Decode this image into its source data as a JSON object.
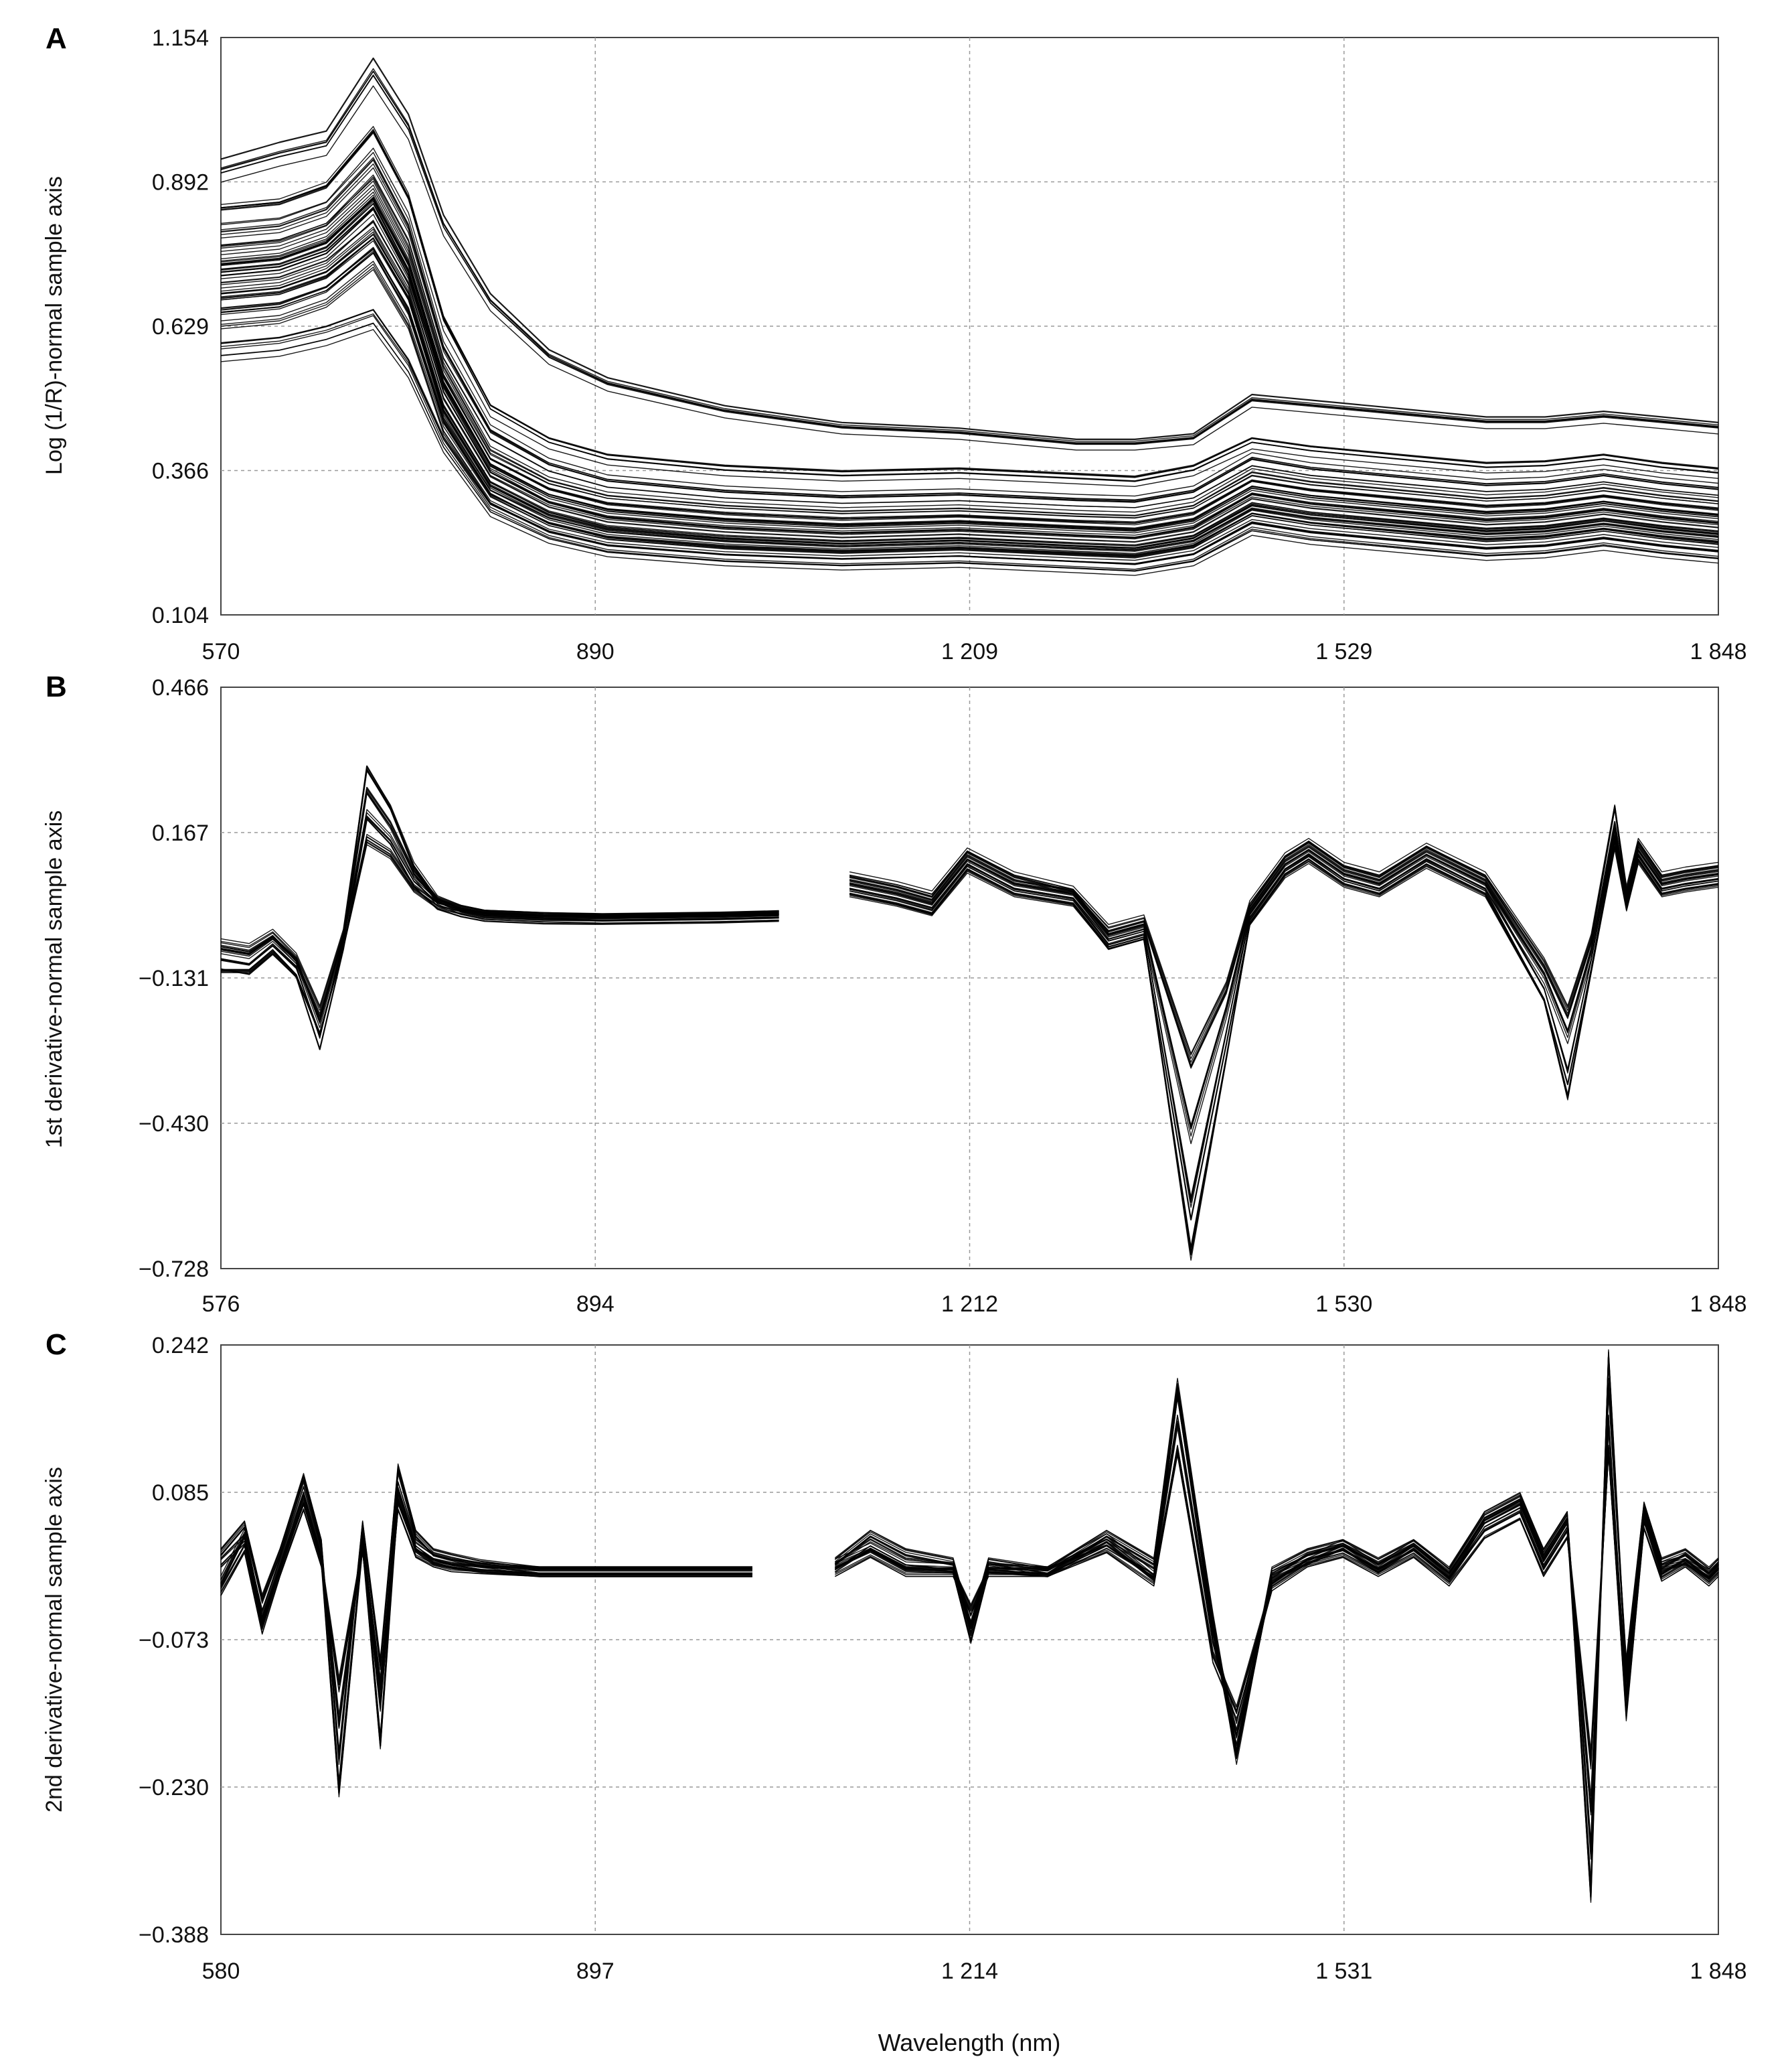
{
  "figure": {
    "xlabel": "Wavelength (nm)"
  },
  "chart_data": [
    {
      "panel": "A",
      "type": "line",
      "title": "",
      "ylabel": "Log (1/R)-normal sample axis",
      "xlabel": "",
      "xlim": [
        570,
        1848
      ],
      "ylim": [
        0.104,
        1.154
      ],
      "xticks": [
        "570",
        "890",
        "1 209",
        "1 529",
        "1 848"
      ],
      "yticks": [
        "1.154",
        "0.892",
        "0.629",
        "0.366",
        "0.104"
      ],
      "grid": true,
      "gap": null,
      "x": [
        570,
        620,
        660,
        700,
        730,
        760,
        800,
        850,
        900,
        1000,
        1100,
        1200,
        1300,
        1350,
        1400,
        1450,
        1500,
        1550,
        1600,
        1650,
        1700,
        1750,
        1800,
        1848
      ],
      "series": [
        {
          "values": [
            0.92,
            0.95,
            0.97,
            1.1,
            1.0,
            0.82,
            0.68,
            0.58,
            0.53,
            0.48,
            0.45,
            0.44,
            0.42,
            0.42,
            0.43,
            0.5,
            0.49,
            0.48,
            0.47,
            0.46,
            0.46,
            0.47,
            0.46,
            0.45
          ]
        },
        {
          "values": [
            0.84,
            0.85,
            0.88,
            0.98,
            0.86,
            0.64,
            0.48,
            0.42,
            0.39,
            0.37,
            0.36,
            0.365,
            0.355,
            0.35,
            0.37,
            0.42,
            0.405,
            0.395,
            0.385,
            0.375,
            0.378,
            0.39,
            0.375,
            0.365
          ]
        },
        {
          "values": [
            0.8,
            0.81,
            0.84,
            0.93,
            0.81,
            0.59,
            0.44,
            0.38,
            0.35,
            0.33,
            0.32,
            0.325,
            0.315,
            0.312,
            0.33,
            0.39,
            0.372,
            0.362,
            0.352,
            0.342,
            0.346,
            0.36,
            0.345,
            0.335
          ]
        },
        {
          "values": [
            0.76,
            0.77,
            0.8,
            0.88,
            0.76,
            0.55,
            0.4,
            0.345,
            0.318,
            0.3,
            0.29,
            0.295,
            0.285,
            0.282,
            0.3,
            0.36,
            0.343,
            0.333,
            0.323,
            0.313,
            0.318,
            0.332,
            0.318,
            0.308
          ]
        },
        {
          "values": [
            0.74,
            0.75,
            0.78,
            0.86,
            0.74,
            0.53,
            0.38,
            0.325,
            0.298,
            0.28,
            0.27,
            0.276,
            0.266,
            0.262,
            0.28,
            0.34,
            0.323,
            0.313,
            0.303,
            0.293,
            0.298,
            0.312,
            0.298,
            0.288
          ]
        },
        {
          "values": [
            0.72,
            0.73,
            0.76,
            0.84,
            0.72,
            0.51,
            0.365,
            0.31,
            0.283,
            0.265,
            0.255,
            0.261,
            0.251,
            0.247,
            0.265,
            0.325,
            0.308,
            0.298,
            0.288,
            0.278,
            0.283,
            0.297,
            0.283,
            0.273
          ]
        },
        {
          "values": [
            0.7,
            0.71,
            0.74,
            0.81,
            0.7,
            0.49,
            0.35,
            0.295,
            0.268,
            0.25,
            0.24,
            0.246,
            0.236,
            0.232,
            0.25,
            0.31,
            0.293,
            0.283,
            0.273,
            0.263,
            0.268,
            0.282,
            0.268,
            0.258
          ]
        },
        {
          "values": [
            0.67,
            0.68,
            0.71,
            0.78,
            0.67,
            0.465,
            0.33,
            0.278,
            0.252,
            0.235,
            0.226,
            0.232,
            0.222,
            0.218,
            0.236,
            0.295,
            0.278,
            0.268,
            0.258,
            0.248,
            0.253,
            0.267,
            0.253,
            0.243
          ]
        },
        {
          "values": [
            0.64,
            0.65,
            0.68,
            0.75,
            0.64,
            0.445,
            0.315,
            0.262,
            0.237,
            0.22,
            0.212,
            0.218,
            0.208,
            0.204,
            0.222,
            0.28,
            0.263,
            0.253,
            0.243,
            0.233,
            0.238,
            0.252,
            0.238,
            0.228
          ]
        },
        {
          "values": [
            0.59,
            0.6,
            0.62,
            0.65,
            0.56,
            0.42,
            0.3,
            0.25,
            0.225,
            0.208,
            0.2,
            0.205,
            0.195,
            0.19,
            0.208,
            0.265,
            0.248,
            0.238,
            0.228,
            0.218,
            0.223,
            0.237,
            0.223,
            0.213
          ]
        }
      ]
    },
    {
      "panel": "B",
      "type": "line",
      "title": "",
      "ylabel": "1st derivative-normal sample axis",
      "xlabel": "",
      "xlim": [
        576,
        1848
      ],
      "ylim": [
        -0.728,
        0.466
      ],
      "xticks": [
        "576",
        "894",
        "1 212",
        "1 530",
        "1 848"
      ],
      "yticks": [
        "0.466",
        "0.167",
        "−0.131",
        "−0.430",
        "−0.728"
      ],
      "grid": true,
      "gap": [
        1050,
        1110
      ],
      "x": [
        576,
        600,
        620,
        640,
        660,
        680,
        700,
        720,
        740,
        760,
        780,
        800,
        850,
        900,
        1000,
        1050,
        1110,
        1150,
        1180,
        1210,
        1250,
        1300,
        1330,
        1360,
        1400,
        1430,
        1450,
        1480,
        1500,
        1530,
        1560,
        1600,
        1650,
        1700,
        1720,
        1740,
        1760,
        1770,
        1780,
        1800,
        1820,
        1848
      ],
      "series": [
        {
          "values": [
            -0.06,
            -0.07,
            -0.04,
            -0.09,
            -0.2,
            -0.04,
            0.3,
            0.22,
            0.1,
            0.03,
            0.01,
            0.0,
            -0.005,
            -0.008,
            -0.005,
            -0.002,
            0.08,
            0.06,
            0.04,
            0.13,
            0.08,
            0.05,
            -0.03,
            -0.01,
            -0.3,
            -0.15,
            0.02,
            0.12,
            0.15,
            0.1,
            0.08,
            0.14,
            0.08,
            -0.1,
            -0.2,
            -0.05,
            0.22,
            0.05,
            0.15,
            0.08,
            0.09,
            0.1
          ]
        },
        {
          "values": [
            -0.08,
            -0.09,
            -0.055,
            -0.1,
            -0.23,
            -0.05,
            0.25,
            0.18,
            0.08,
            0.025,
            0.008,
            -0.002,
            -0.007,
            -0.009,
            -0.006,
            -0.003,
            0.06,
            0.04,
            0.02,
            0.11,
            0.06,
            0.04,
            -0.05,
            -0.03,
            -0.45,
            -0.2,
            0.0,
            0.1,
            0.13,
            0.08,
            0.06,
            0.12,
            0.06,
            -0.13,
            -0.25,
            -0.08,
            0.18,
            0.03,
            0.13,
            0.06,
            0.07,
            0.08
          ]
        },
        {
          "values": [
            -0.1,
            -0.11,
            -0.07,
            -0.115,
            -0.26,
            -0.06,
            0.2,
            0.15,
            0.065,
            0.02,
            0.005,
            -0.004,
            -0.009,
            -0.01,
            -0.007,
            -0.004,
            0.05,
            0.03,
            0.01,
            0.1,
            0.05,
            0.03,
            -0.06,
            -0.04,
            -0.6,
            -0.25,
            -0.01,
            0.09,
            0.12,
            0.07,
            0.05,
            0.11,
            0.05,
            -0.16,
            -0.33,
            -0.1,
            0.16,
            0.02,
            0.12,
            0.05,
            0.06,
            0.07
          ]
        },
        {
          "values": [
            -0.12,
            -0.12,
            -0.08,
            -0.13,
            -0.25,
            -0.07,
            0.15,
            0.12,
            0.05,
            0.015,
            0.003,
            -0.005,
            -0.01,
            -0.011,
            -0.008,
            -0.005,
            0.04,
            0.02,
            0.0,
            0.09,
            0.04,
            0.02,
            -0.07,
            -0.05,
            -0.7,
            -0.3,
            -0.02,
            0.08,
            0.11,
            0.06,
            0.04,
            0.1,
            0.04,
            -0.18,
            -0.38,
            -0.12,
            0.14,
            0.01,
            0.11,
            0.04,
            0.05,
            0.06
          ]
        }
      ]
    },
    {
      "panel": "C",
      "type": "line",
      "title": "",
      "ylabel": "2nd derivative-normal sample axis",
      "xlabel": "Wavelength (nm)",
      "xlim": [
        580,
        1848
      ],
      "ylim": [
        -0.388,
        0.242
      ],
      "xticks": [
        "580",
        "897",
        "1 214",
        "1 531",
        "1 848"
      ],
      "yticks": [
        "0.242",
        "0.085",
        "−0.073",
        "−0.230",
        "−0.388"
      ],
      "grid": true,
      "gap": [
        1030,
        1100
      ],
      "x": [
        580,
        600,
        615,
        630,
        650,
        665,
        680,
        700,
        715,
        730,
        745,
        760,
        775,
        800,
        850,
        900,
        1000,
        1030,
        1100,
        1130,
        1160,
        1200,
        1215,
        1230,
        1280,
        1330,
        1370,
        1390,
        1420,
        1440,
        1470,
        1500,
        1530,
        1560,
        1590,
        1620,
        1650,
        1680,
        1700,
        1720,
        1740,
        1755,
        1770,
        1785,
        1800,
        1820,
        1840,
        1848
      ],
      "series": [
        {
          "values": [
            0.02,
            0.05,
            -0.03,
            0.02,
            0.1,
            0.03,
            -0.2,
            0.05,
            -0.1,
            0.11,
            0.04,
            0.02,
            0.015,
            0.008,
            0.0,
            0.0,
            0.0,
            0.0,
            0.01,
            0.04,
            0.02,
            0.01,
            -0.06,
            0.01,
            0.0,
            0.04,
            0.01,
            0.2,
            -0.05,
            -0.2,
            0.0,
            0.02,
            0.03,
            0.01,
            0.03,
            0.0,
            0.06,
            0.08,
            0.02,
            0.06,
            -0.3,
            0.2,
            -0.1,
            0.07,
            0.01,
            0.02,
            0.0,
            0.01
          ]
        },
        {
          "values": [
            0.01,
            0.035,
            -0.045,
            0.01,
            0.085,
            0.02,
            -0.16,
            0.035,
            -0.12,
            0.09,
            0.03,
            0.015,
            0.01,
            0.005,
            0.0,
            0.0,
            0.0,
            0.0,
            0.005,
            0.03,
            0.01,
            0.005,
            -0.05,
            0.005,
            0.0,
            0.03,
            0.0,
            0.16,
            -0.07,
            -0.17,
            -0.01,
            0.015,
            0.025,
            0.005,
            0.025,
            -0.005,
            0.05,
            0.07,
            0.01,
            0.05,
            -0.25,
            0.16,
            -0.13,
            0.06,
            0.0,
            0.015,
            -0.005,
            0.005
          ]
        },
        {
          "values": [
            -0.02,
            0.025,
            -0.06,
            0.0,
            0.07,
            0.01,
            -0.12,
            0.025,
            -0.14,
            0.07,
            0.02,
            0.01,
            0.005,
            0.003,
            0.0,
            0.0,
            0.0,
            0.0,
            0.0,
            0.02,
            0.0,
            0.0,
            -0.04,
            0.0,
            0.0,
            0.025,
            -0.01,
            0.13,
            -0.09,
            -0.15,
            -0.015,
            0.01,
            0.02,
            0.0,
            0.02,
            -0.01,
            0.04,
            0.06,
            0.0,
            0.04,
            -0.2,
            0.13,
            -0.15,
            0.05,
            -0.005,
            0.01,
            -0.01,
            0.0
          ]
        },
        {
          "values": [
            -0.01,
            0.04,
            -0.05,
            0.005,
            0.075,
            0.015,
            -0.23,
            0.03,
            -0.18,
            0.08,
            0.025,
            0.012,
            0.008,
            0.004,
            0.0,
            0.0,
            0.0,
            0.0,
            0.008,
            0.025,
            0.005,
            0.003,
            -0.07,
            0.003,
            0.0,
            0.035,
            -0.005,
            0.19,
            -0.06,
            -0.19,
            -0.005,
            0.012,
            0.028,
            0.003,
            0.028,
            -0.003,
            0.055,
            0.075,
            0.015,
            0.055,
            -0.34,
            0.23,
            -0.11,
            0.065,
            0.005,
            0.012,
            -0.003,
            0.008
          ]
        }
      ]
    }
  ]
}
